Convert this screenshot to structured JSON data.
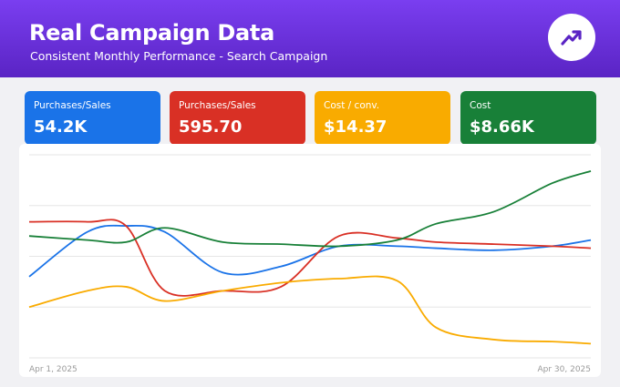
{
  "header": {
    "title": "Real Campaign Data",
    "subtitle": "Consistent Monthly Performance - Search Campaign",
    "logo_icon": "trending-up-icon"
  },
  "kpis": [
    {
      "label": "Purchases/Sales",
      "value": "54.2K",
      "color": "#1a73e8"
    },
    {
      "label": "Purchases/Sales",
      "value": "595.70",
      "color": "#d93025"
    },
    {
      "label": "Cost / conv.",
      "value": "$14.37",
      "color": "#f9ab00"
    },
    {
      "label": "Cost",
      "value": "$8.66K",
      "color": "#188038"
    }
  ],
  "chart_data": {
    "type": "line",
    "x_labels": [
      "Apr 1, 2025",
      "Apr 30, 2025"
    ],
    "x": [
      1,
      4,
      6,
      8,
      11,
      14,
      17,
      20,
      22,
      25,
      28,
      30
    ],
    "ylim": [
      0,
      100
    ],
    "grid": true,
    "series": [
      {
        "color": "#1a73e8",
        "values": [
          40,
          62,
          65,
          62,
          42,
          45,
          55,
          55,
          54,
          53,
          55,
          58
        ]
      },
      {
        "color": "#d93025",
        "values": [
          67,
          67,
          65,
          33,
          33,
          35,
          60,
          59,
          57,
          56,
          55,
          54
        ]
      },
      {
        "color": "#f9ab00",
        "values": [
          25,
          33,
          35,
          28,
          33,
          37,
          39,
          38,
          15,
          9,
          8,
          7
        ]
      },
      {
        "color": "#188038",
        "values": [
          60,
          58,
          57,
          64,
          57,
          56,
          55,
          58,
          66,
          72,
          86,
          92
        ]
      }
    ]
  }
}
